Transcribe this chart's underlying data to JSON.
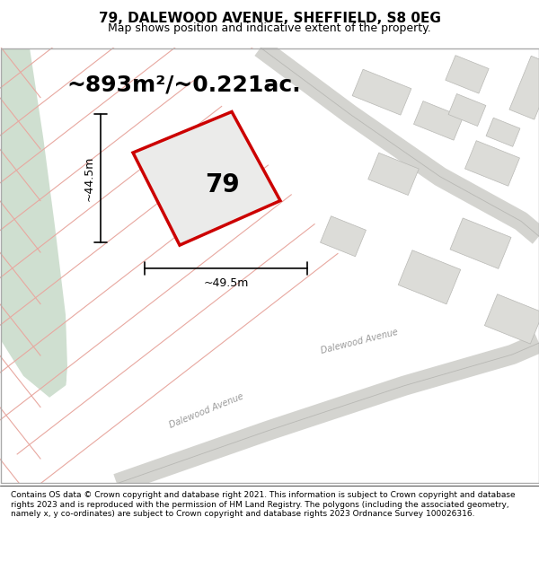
{
  "title": "79, DALEWOOD AVENUE, SHEFFIELD, S8 0EG",
  "subtitle": "Map shows position and indicative extent of the property.",
  "area_text": "~893m²/~0.221ac.",
  "dim_width": "~49.5m",
  "dim_height": "~44.5m",
  "property_number": "79",
  "road_label": "Dalewood Avenue",
  "footer": "Contains OS data © Crown copyright and database right 2021. This information is subject to Crown copyright and database rights 2023 and is reproduced with the permission of HM Land Registry. The polygons (including the associated geometry, namely x, y co-ordinates) are subject to Crown copyright and database rights 2023 Ordnance Survey 100026316.",
  "map_bg": "#f0f0ee",
  "green_color": "#cfdfd0",
  "property_outline": "#cc0000",
  "grid_line_color": "#e8a8a0",
  "title_fontsize": 11,
  "subtitle_fontsize": 9,
  "area_fontsize": 18,
  "footer_fontsize": 6.5
}
